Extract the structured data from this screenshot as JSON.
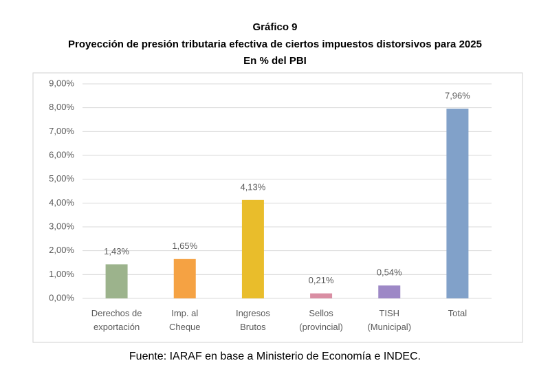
{
  "chart_data": {
    "type": "bar",
    "title": "Gráfico 9",
    "subtitle": "Proyección de presión tributaria efectiva de ciertos impuestos distorsivos para 2025",
    "unit_label": "En % del PBI",
    "source": "Fuente: IARAF en base a Ministerio de Economía e INDEC.",
    "categories": [
      "Derechos de exportación",
      "Imp. al Cheque",
      "Ingresos Brutos",
      "Sellos (provincial)",
      "TISH (Municipal)",
      "Total"
    ],
    "values": [
      1.43,
      1.65,
      4.13,
      0.21,
      0.54,
      7.96
    ],
    "value_labels": [
      "1,43%",
      "1,65%",
      "4,13%",
      "0,21%",
      "0,54%",
      "7,96%"
    ],
    "colors": [
      "#9cb38c",
      "#f5a243",
      "#e9bd2b",
      "#d98ea3",
      "#9d88c6",
      "#81a1c9"
    ],
    "ylim": [
      0,
      9
    ],
    "yticks": [
      {
        "value": 0,
        "label": "0,00%"
      },
      {
        "value": 1,
        "label": "1,00%"
      },
      {
        "value": 2,
        "label": "2,00%"
      },
      {
        "value": 3,
        "label": "3,00%"
      },
      {
        "value": 4,
        "label": "4,00%"
      },
      {
        "value": 5,
        "label": "5,00%"
      },
      {
        "value": 6,
        "label": "6,00%"
      },
      {
        "value": 7,
        "label": "7,00%"
      },
      {
        "value": 8,
        "label": "8,00%"
      },
      {
        "value": 9,
        "label": "9,00%"
      }
    ],
    "grid": true
  }
}
